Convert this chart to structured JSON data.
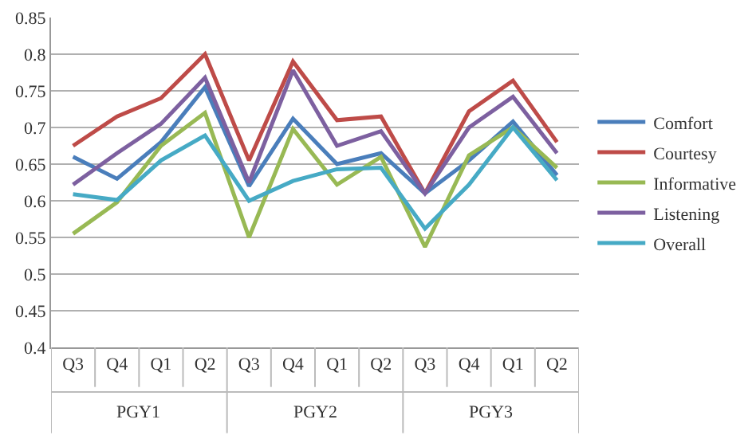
{
  "chart_data": {
    "type": "line",
    "categories": [
      "Q3",
      "Q4",
      "Q1",
      "Q2",
      "Q3",
      "Q4",
      "Q1",
      "Q2",
      "Q3",
      "Q4",
      "Q1",
      "Q2"
    ],
    "series": [
      {
        "name": "Comfort",
        "color": "#4a7ebb",
        "values": [
          0.66,
          0.63,
          0.68,
          0.755,
          0.62,
          0.712,
          0.65,
          0.665,
          0.61,
          0.655,
          0.708,
          0.635
        ]
      },
      {
        "name": "Courtesy",
        "color": "#be4b48",
        "values": [
          0.675,
          0.715,
          0.74,
          0.8,
          0.655,
          0.79,
          0.71,
          0.715,
          0.61,
          0.722,
          0.764,
          0.68
        ]
      },
      {
        "name": "Informative",
        "color": "#98b954",
        "values": [
          0.555,
          0.598,
          0.675,
          0.72,
          0.55,
          0.698,
          0.622,
          0.66,
          0.537,
          0.662,
          0.7,
          0.645
        ]
      },
      {
        "name": "Listening",
        "color": "#7d60a0",
        "values": [
          0.622,
          0.665,
          0.705,
          0.768,
          0.625,
          0.778,
          0.675,
          0.695,
          0.61,
          0.7,
          0.742,
          0.665
        ]
      },
      {
        "name": "Overall",
        "color": "#46aac5",
        "values": [
          0.609,
          0.601,
          0.655,
          0.689,
          0.6,
          0.627,
          0.643,
          0.645,
          0.562,
          0.622,
          0.7,
          0.628
        ]
      }
    ],
    "annotations": [
      "PGY1",
      "PGY2",
      "PGY3"
    ],
    "ylim": [
      0.4,
      0.85
    ],
    "yticks": [
      0.4,
      0.45,
      0.5,
      0.55,
      0.6,
      0.65,
      0.7,
      0.75,
      0.8,
      0.85
    ],
    "grid": "y",
    "legend": "right",
    "marker": "none",
    "line_style": "solid"
  }
}
